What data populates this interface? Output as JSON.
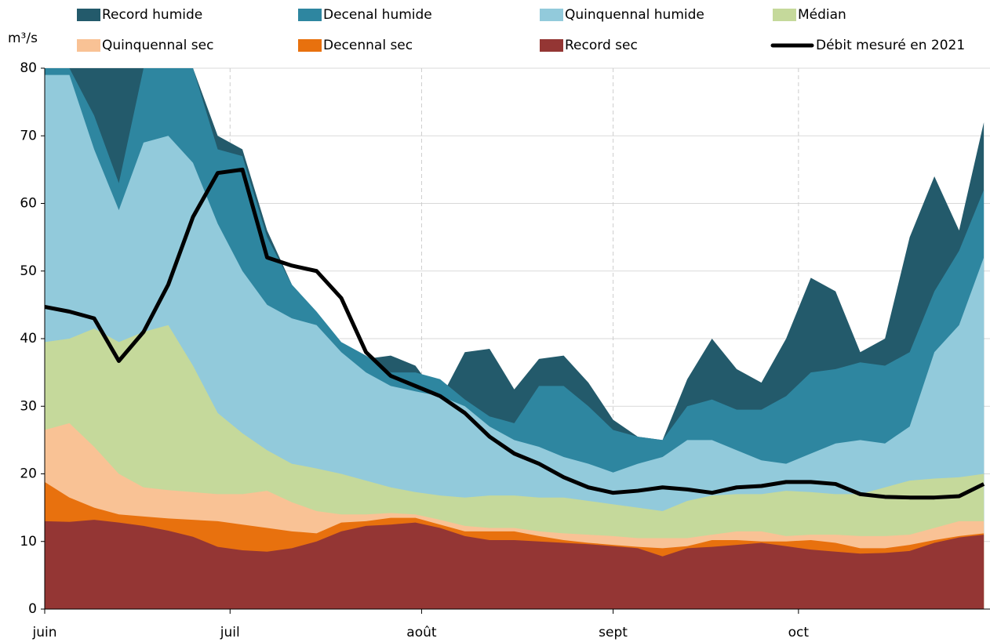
{
  "chart_data": {
    "type": "area",
    "y_label": "m³/s",
    "x": [
      0,
      4,
      8,
      12,
      16,
      20,
      24,
      28,
      32,
      36,
      40,
      44,
      48,
      52,
      56,
      60,
      64,
      68,
      72,
      76,
      80,
      84,
      88,
      92,
      96,
      100,
      104,
      108,
      112,
      116,
      120,
      124,
      128,
      132,
      136,
      140,
      144,
      148,
      152
    ],
    "xlim": [
      0,
      153
    ],
    "xticks": [
      {
        "value": 0,
        "label": "juin"
      },
      {
        "value": 30,
        "label": "juil"
      },
      {
        "value": 61,
        "label": "août"
      },
      {
        "value": 92,
        "label": "sept"
      },
      {
        "value": 122,
        "label": "oct"
      }
    ],
    "ylim": [
      0,
      80
    ],
    "yticks": [
      0,
      10,
      20,
      30,
      40,
      50,
      60,
      70,
      80
    ],
    "grid": true,
    "series": [
      {
        "name": "Record humide",
        "color": "#235a6b",
        "values": [
          80,
          80,
          80,
          80,
          80,
          80,
          80,
          70,
          68,
          56,
          48,
          40,
          39,
          37,
          37.5,
          36,
          31,
          38,
          38.5,
          32.5,
          37,
          37.5,
          33.5,
          28,
          25.5,
          25,
          34,
          40,
          35.5,
          33.5,
          40,
          49,
          47,
          38,
          40,
          55,
          64,
          56,
          72
        ]
      },
      {
        "name": "Decenal humide",
        "color": "#2e86a0",
        "values": [
          80,
          80,
          73,
          63,
          80,
          80,
          80,
          68,
          67,
          55,
          48,
          44,
          39.5,
          37.5,
          35,
          35,
          34,
          31,
          28.5,
          27.5,
          33,
          33,
          30,
          26.5,
          25.5,
          25,
          30,
          31,
          29.5,
          29.5,
          31.5,
          35,
          35.5,
          36.5,
          36,
          38,
          47,
          53,
          62
        ]
      },
      {
        "name": "Quinquennal humide",
        "color": "#92cadb",
        "values": [
          79,
          79,
          68,
          59,
          69,
          70,
          66,
          57,
          50,
          45,
          43,
          42,
          38,
          35,
          33,
          32.2,
          31.5,
          30,
          27,
          25,
          24,
          22.5,
          21.5,
          20.2,
          21.5,
          22.5,
          25,
          25,
          23.5,
          22,
          21.5,
          23,
          24.5,
          25,
          24.5,
          27,
          38,
          42,
          52
        ]
      },
      {
        "name": "Médian",
        "color": "#c5d99b",
        "values": [
          39.5,
          40,
          41.5,
          39.5,
          41,
          42,
          36,
          29,
          26,
          23.5,
          21.5,
          20.8,
          20,
          19,
          18,
          17.3,
          16.8,
          16.5,
          16.8,
          16.8,
          16.5,
          16.5,
          16,
          15.5,
          15,
          14.5,
          16,
          16.8,
          17,
          17,
          17.5,
          17.3,
          17,
          17,
          18,
          19,
          19.3,
          19.5,
          20
        ]
      },
      {
        "name": "Quinquennal sec",
        "color": "#f9c295",
        "values": [
          26.5,
          27.5,
          24,
          20,
          18,
          17.6,
          17.3,
          17,
          17,
          17.5,
          15.8,
          14.5,
          14,
          14,
          14.2,
          14,
          13.2,
          12.3,
          12,
          12,
          11.5,
          11.2,
          11,
          10.8,
          10.5,
          10.5,
          10.5,
          11,
          11.5,
          11.5,
          10.8,
          11,
          11,
          10.8,
          10.8,
          11,
          12,
          13,
          13
        ]
      },
      {
        "name": "Decennal sec",
        "color": "#e8710e",
        "values": [
          18.8,
          16.5,
          15,
          14,
          13.7,
          13.4,
          13.2,
          13,
          12.5,
          12,
          11.5,
          11.2,
          12.8,
          13,
          13.5,
          13.5,
          12.5,
          11.5,
          11.5,
          11.5,
          10.8,
          10.2,
          9.8,
          9.5,
          9.2,
          9,
          9.3,
          10.2,
          10.2,
          10,
          10,
          10.2,
          9.8,
          9,
          9,
          9.5,
          10.2,
          10.8,
          11.2
        ]
      },
      {
        "name": "Record sec",
        "color": "#943634",
        "values": [
          13,
          12.9,
          13.2,
          12.8,
          12.3,
          11.6,
          10.7,
          9.2,
          8.7,
          8.5,
          9,
          10,
          11.5,
          12.3,
          12.5,
          12.8,
          12,
          10.8,
          10.2,
          10.2,
          10,
          9.8,
          9.6,
          9.3,
          9,
          7.8,
          9,
          9.2,
          9.5,
          9.8,
          9.3,
          8.8,
          8.5,
          8.2,
          8.3,
          8.6,
          9.8,
          10.6,
          11
        ]
      },
      {
        "name": "Débit mesuré en 2021",
        "color": "#000000",
        "type": "line",
        "values": [
          44.7,
          44,
          43,
          36.7,
          41,
          48,
          58,
          64.5,
          65,
          52,
          50.8,
          50,
          46,
          38,
          34.5,
          33,
          31.5,
          29,
          25.5,
          23,
          21.5,
          19.5,
          18,
          17.2,
          17.5,
          18,
          17.7,
          17.2,
          18,
          18.2,
          18.8,
          18.8,
          18.5,
          17,
          16.6,
          16.5,
          16.5,
          16.7,
          18.5
        ]
      }
    ]
  }
}
